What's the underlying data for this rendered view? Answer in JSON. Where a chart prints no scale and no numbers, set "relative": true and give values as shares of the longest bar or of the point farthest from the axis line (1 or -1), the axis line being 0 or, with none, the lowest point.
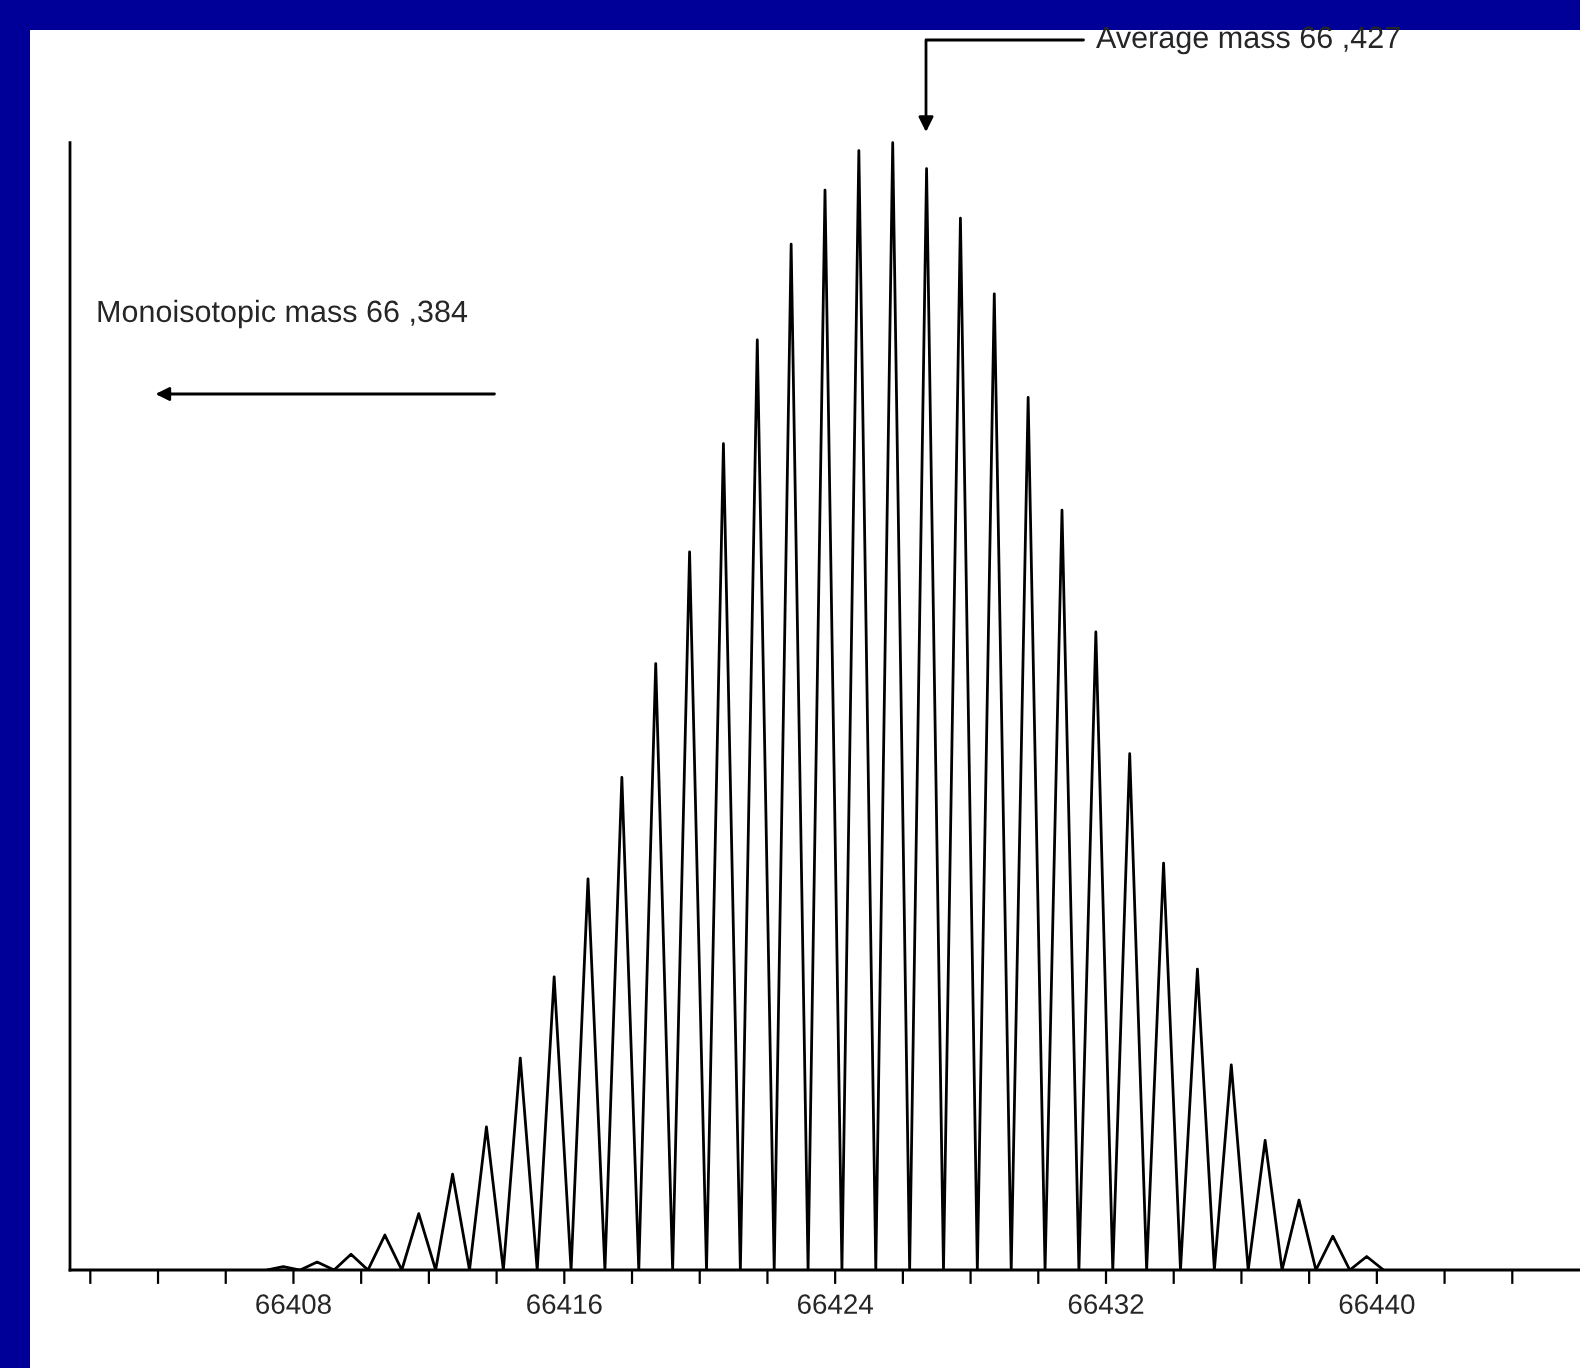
{
  "chart_data": {
    "type": "line",
    "relative": true,
    "x": [
      66407.2,
      66407.7,
      66408.2,
      66408.7,
      66409.2,
      66409.7,
      66410.2,
      66410.7,
      66411.2,
      66411.7,
      66412.2,
      66412.7,
      66413.2,
      66413.7,
      66414.2,
      66414.7,
      66415.2,
      66415.7,
      66416.2,
      66416.7,
      66417.2,
      66417.7,
      66418.2,
      66418.7,
      66419.2,
      66419.7,
      66420.2,
      66420.7,
      66421.2,
      66421.7,
      66422.2,
      66422.7,
      66423.2,
      66423.7,
      66424.2,
      66424.7,
      66425.2,
      66425.7,
      66426.2,
      66426.7,
      66427.2,
      66427.7,
      66428.2,
      66428.7,
      66429.2,
      66429.7,
      66430.2,
      66430.7,
      66431.2,
      66431.7,
      66432.2,
      66432.7,
      66433.2,
      66433.7,
      66434.2,
      66434.7,
      66435.2,
      66435.7,
      66436.2,
      66436.7,
      66437.2,
      66437.7,
      66438.2,
      66438.7,
      66439.2,
      66439.7,
      66440.2
    ],
    "series": [
      {
        "color": "#000000",
        "values": [
          0,
          0.003,
          0,
          0.007,
          0,
          0.014,
          0,
          0.031,
          0,
          0.05,
          0,
          0.085,
          0,
          0.127,
          0,
          0.188,
          0,
          0.26,
          0,
          0.347,
          0,
          0.437,
          0,
          0.538,
          0,
          0.637,
          0,
          0.733,
          0,
          0.825,
          0,
          0.91,
          0,
          0.958,
          0,
          0.993,
          0,
          1.0,
          0,
          0.977,
          0,
          0.933,
          0,
          0.866,
          0,
          0.774,
          0,
          0.674,
          0,
          0.566,
          0,
          0.458,
          0,
          0.361,
          0,
          0.267,
          0,
          0.182,
          0,
          0.115,
          0,
          0.062,
          0,
          0.03,
          0,
          0.012,
          0
        ]
      }
    ],
    "xlim": [
      66401.4,
      66446
    ],
    "xticks": [
      {
        "value": 66402,
        "label": null
      },
      {
        "value": 66404,
        "label": null
      },
      {
        "value": 66406,
        "label": null
      },
      66408,
      {
        "value": 66410,
        "label": null
      },
      {
        "value": 66412,
        "label": null
      },
      {
        "value": 66414,
        "label": null
      },
      66416,
      {
        "value": 66418,
        "label": null
      },
      {
        "value": 66420,
        "label": null
      },
      {
        "value": 66422,
        "label": null
      },
      66424,
      {
        "value": 66426,
        "label": null
      },
      {
        "value": 66428,
        "label": null
      },
      {
        "value": 66430,
        "label": null
      },
      66432,
      {
        "value": 66434,
        "label": null
      },
      {
        "value": 66436,
        "label": null
      },
      {
        "value": 66438,
        "label": null
      },
      66440,
      {
        "value": 66442,
        "label": null
      },
      {
        "value": 66444,
        "label": null
      }
    ],
    "tick_labels": "x",
    "grid": false,
    "legend": false,
    "marker": "none",
    "line_style": "solid",
    "annotations": [
      "Average mass 66 ,427",
      "Monoisotopic mass 66 ,384"
    ]
  }
}
